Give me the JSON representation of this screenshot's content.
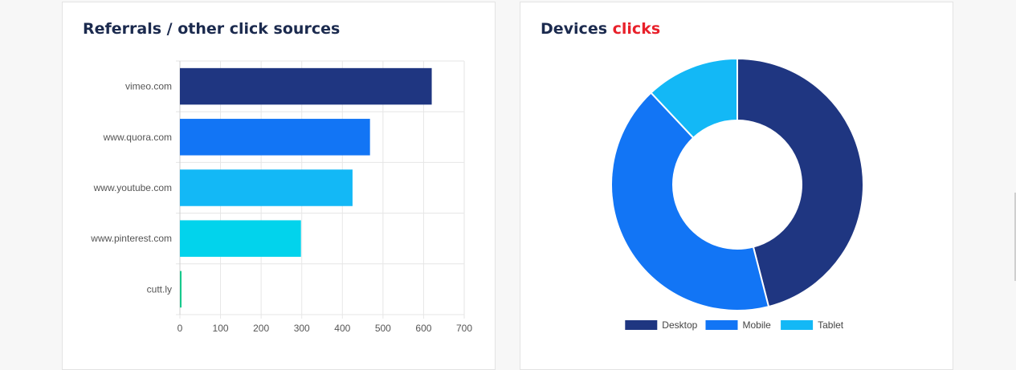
{
  "referrals": {
    "title": "Referrals / other click sources",
    "chart_data": {
      "type": "bar",
      "orientation": "horizontal",
      "categories": [
        "vimeo.com",
        "www.quora.com",
        "www.youtube.com",
        "www.pinterest.com",
        "cutt.ly"
      ],
      "values": [
        620,
        468,
        425,
        298,
        4
      ],
      "colors": [
        "#1f3681",
        "#1275f5",
        "#13b8f6",
        "#02d3ec",
        "#16c98d"
      ],
      "xticks": [
        "0",
        "100",
        "200",
        "300",
        "400",
        "500",
        "600",
        "700"
      ],
      "xlim": [
        0,
        700
      ],
      "grid": true,
      "title": "Referrals / other click sources"
    }
  },
  "devices": {
    "title_main": "Devices",
    "title_accent": "clicks",
    "chart_data": {
      "type": "pie",
      "variant": "doughnut",
      "labels": [
        "Desktop",
        "Mobile",
        "Tablet"
      ],
      "values": [
        46,
        42,
        12
      ],
      "colors": [
        "#1f3681",
        "#1275f5",
        "#13b8f6"
      ],
      "legend_position": "bottom"
    }
  },
  "colors": {
    "accent": "#e8202a",
    "heading": "#1b2a4e"
  }
}
